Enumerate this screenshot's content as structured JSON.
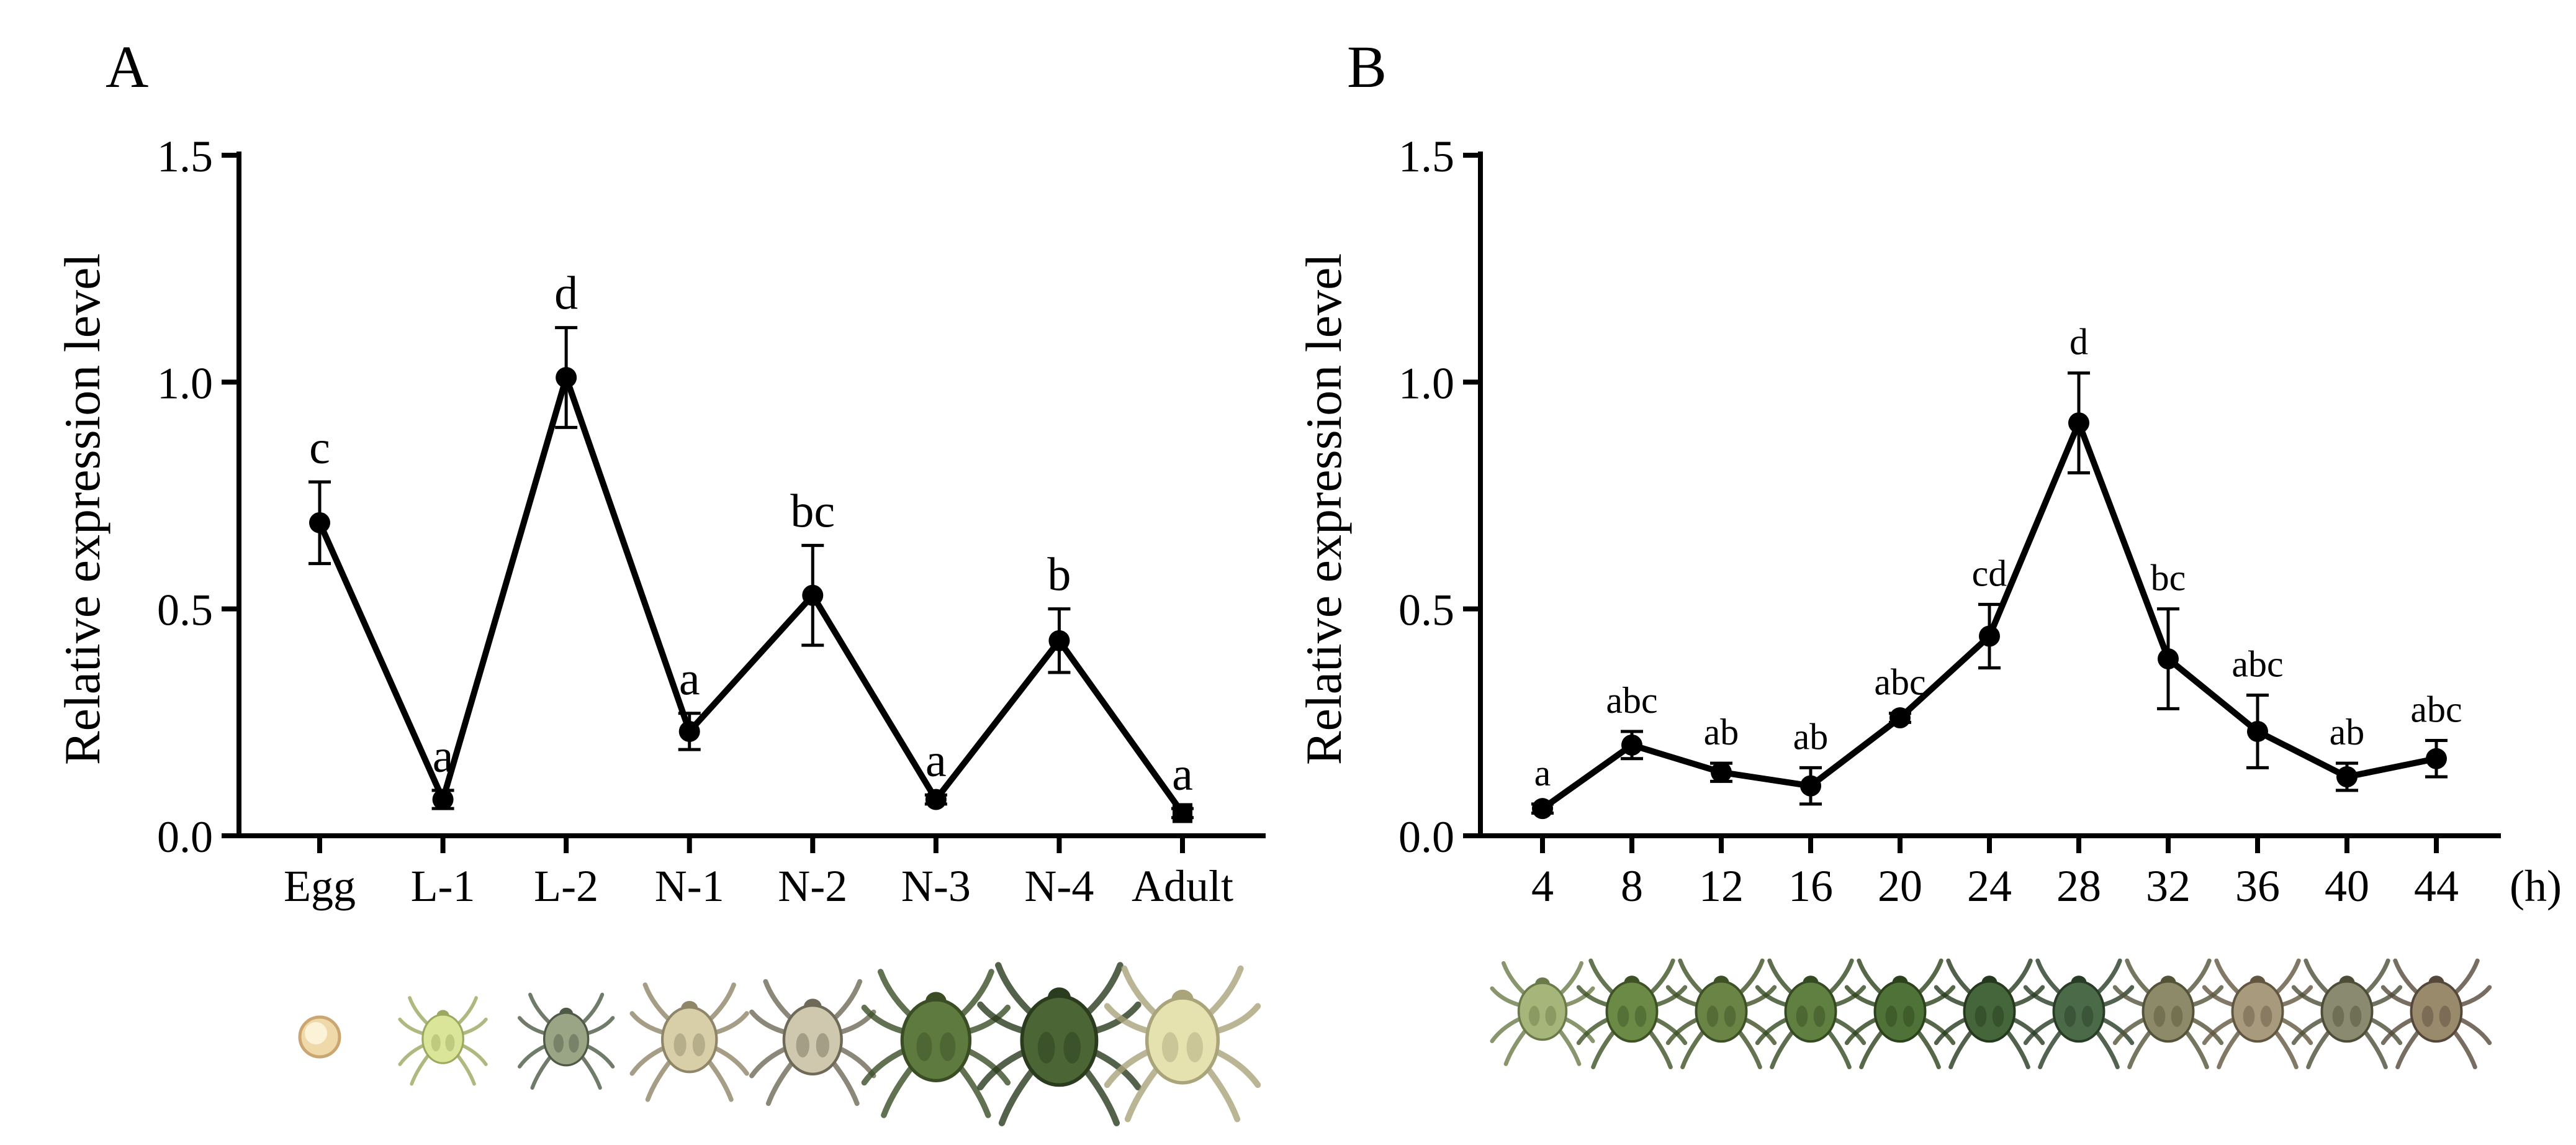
{
  "figure": {
    "colors": {
      "line": "#000000",
      "background": "#ffffff"
    }
  },
  "chart_data": [
    {
      "panel_label": "A",
      "type": "line",
      "ylabel": "Relative expression level",
      "xlabel": "",
      "ylim": [
        0,
        1.5
      ],
      "yticks": [
        "0.0",
        "0.5",
        "1.0",
        "1.5"
      ],
      "grid": false,
      "legend": "none",
      "categories": [
        "Egg",
        "L-1",
        "L-2",
        "N-1",
        "N-2",
        "N-3",
        "N-4",
        "Adult"
      ],
      "series": [
        {
          "values": [
            0.69,
            0.08,
            1.01,
            0.23,
            0.53,
            0.08,
            0.43,
            0.05
          ],
          "error": [
            0.09,
            0.02,
            0.11,
            0.04,
            0.11,
            0.01,
            0.07,
            0.01
          ],
          "markers": [
            "circle",
            "circle",
            "circle",
            "circle",
            "circle",
            "circle",
            "circle",
            "square"
          ]
        }
      ],
      "annotations": [
        "c",
        "a",
        "d",
        "a",
        "bc",
        "a",
        "b",
        "a"
      ],
      "images": [
        {
          "name": "egg",
          "fill": "#efd9a8",
          "stroke": "#caa772",
          "body_scale": 0.35
        },
        {
          "name": "larva-1",
          "fill": "#dbe59a",
          "stroke": "#9aa860",
          "body_scale": 0.6
        },
        {
          "name": "larva-2",
          "fill": "#9aa585",
          "stroke": "#4e5a45",
          "body_scale": 0.65
        },
        {
          "name": "nymph-1",
          "fill": "#d8cfa8",
          "stroke": "#8f8568",
          "body_scale": 0.8
        },
        {
          "name": "nymph-2",
          "fill": "#cfc8ae",
          "stroke": "#6f6a58",
          "body_scale": 0.85
        },
        {
          "name": "nymph-3",
          "fill": "#5f7a3e",
          "stroke": "#3a4d25",
          "body_scale": 1.0
        },
        {
          "name": "nymph-4",
          "fill": "#4b6534",
          "stroke": "#2b3b1e",
          "body_scale": 1.1
        },
        {
          "name": "adult",
          "fill": "#e6e2b0",
          "stroke": "#a9a47a",
          "body_scale": 1.05
        }
      ]
    },
    {
      "panel_label": "B",
      "type": "line",
      "ylabel": "Relative expression level",
      "xlabel": "(h)",
      "ylim": [
        0,
        1.5
      ],
      "yticks": [
        "0.0",
        "0.5",
        "1.0",
        "1.5"
      ],
      "grid": false,
      "legend": "none",
      "categories": [
        "4",
        "8",
        "12",
        "16",
        "20",
        "24",
        "28",
        "32",
        "36",
        "40",
        "44"
      ],
      "series": [
        {
          "values": [
            0.06,
            0.2,
            0.14,
            0.11,
            0.26,
            0.44,
            0.91,
            0.39,
            0.23,
            0.13,
            0.17
          ],
          "error": [
            0.01,
            0.03,
            0.02,
            0.04,
            0.01,
            0.07,
            0.11,
            0.11,
            0.08,
            0.03,
            0.04
          ],
          "markers": [
            "circle",
            "circle",
            "circle",
            "circle",
            "circle",
            "circle",
            "circle",
            "circle",
            "circle",
            "circle",
            "circle"
          ]
        }
      ],
      "annotations": [
        "a",
        "abc",
        "ab",
        "ab",
        "abc",
        "cd",
        "d",
        "bc",
        "abc",
        "ab",
        "abc"
      ],
      "images": [
        {
          "name": "mite-4h",
          "fill": "#a6b57a",
          "stroke": "#6a7a48",
          "body_scale": 0.9
        },
        {
          "name": "mite-8h",
          "fill": "#6b8a45",
          "stroke": "#3e5226",
          "body_scale": 0.95
        },
        {
          "name": "mite-12h",
          "fill": "#6a8446",
          "stroke": "#3e5026",
          "body_scale": 0.95
        },
        {
          "name": "mite-16h",
          "fill": "#5f8040",
          "stroke": "#354a22",
          "body_scale": 0.95
        },
        {
          "name": "mite-20h",
          "fill": "#4f7238",
          "stroke": "#2d421c",
          "body_scale": 0.95
        },
        {
          "name": "mite-24h",
          "fill": "#44663a",
          "stroke": "#26391e",
          "body_scale": 0.95
        },
        {
          "name": "mite-28h",
          "fill": "#4a6a48",
          "stroke": "#283c26",
          "body_scale": 0.95
        },
        {
          "name": "mite-32h",
          "fill": "#8c8a68",
          "stroke": "#545238",
          "body_scale": 0.95
        },
        {
          "name": "mite-36h",
          "fill": "#a89a7c",
          "stroke": "#615640",
          "body_scale": 0.95
        },
        {
          "name": "mite-40h",
          "fill": "#8a8a70",
          "stroke": "#4d4d38",
          "body_scale": 0.95
        },
        {
          "name": "mite-44h",
          "fill": "#9a8a6c",
          "stroke": "#55483a",
          "body_scale": 0.95
        }
      ]
    }
  ]
}
